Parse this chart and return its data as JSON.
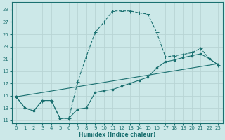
{
  "xlabel": "Humidex (Indice chaleur)",
  "bg_color": "#cce8e8",
  "line_color": "#1a7070",
  "grid_color": "#b8d4d4",
  "xlim": [
    -0.5,
    23.5
  ],
  "ylim": [
    10.5,
    30.2
  ],
  "xticks": [
    0,
    1,
    2,
    3,
    4,
    5,
    6,
    7,
    8,
    9,
    10,
    11,
    12,
    13,
    14,
    15,
    16,
    17,
    18,
    19,
    20,
    21,
    22,
    23
  ],
  "yticks": [
    11,
    13,
    15,
    17,
    19,
    21,
    23,
    25,
    27,
    29
  ],
  "curve1_x": [
    0,
    1,
    2,
    3,
    4,
    5,
    6,
    7,
    8,
    9,
    10,
    11,
    12,
    13,
    14,
    15,
    16,
    17,
    18,
    19,
    20,
    21,
    22,
    23
  ],
  "curve1_y": [
    14.8,
    13.0,
    12.5,
    14.2,
    14.2,
    11.3,
    11.3,
    17.2,
    21.4,
    25.3,
    27.0,
    28.8,
    28.8,
    28.8,
    28.5,
    28.3,
    25.3,
    21.3,
    21.5,
    21.7,
    22.0,
    22.7,
    21.0,
    20.0
  ],
  "curve2_x": [
    0,
    1,
    2,
    3,
    4,
    5,
    6,
    7,
    8,
    9,
    10,
    11,
    12,
    13,
    14,
    15,
    16,
    17,
    18,
    19,
    20,
    21,
    22,
    23
  ],
  "curve2_y": [
    14.8,
    13.0,
    12.5,
    14.2,
    14.2,
    11.3,
    11.3,
    12.8,
    13.0,
    15.5,
    15.8,
    16.0,
    16.5,
    17.0,
    17.5,
    18.0,
    19.5,
    20.5,
    20.8,
    21.2,
    21.5,
    21.8,
    21.0,
    20.0
  ],
  "line3_x": [
    0,
    23
  ],
  "line3_y": [
    14.8,
    20.2
  ]
}
